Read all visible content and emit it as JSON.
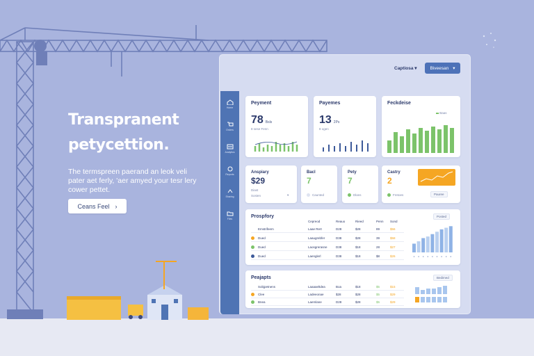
{
  "hero": {
    "title_line1": "Transpranent",
    "title_line2": "petycettion.",
    "body": "The termspreen paerand an leok veli pater aet ferly, 'aer amyed your tesr lery cower pettet.",
    "cta_label": "Ceans Feel"
  },
  "topbar": {
    "label": "Captiosa ▾",
    "button_label": "Biveesan"
  },
  "rail": [
    "Home",
    "Orders",
    "Analytics",
    "Reports",
    "Sharing",
    "Files"
  ],
  "cards": {
    "payment": {
      "title": "Peyment",
      "value": "78",
      "unit": "Bsls",
      "sub": "8 sese Fenn"
    },
    "payemes": {
      "title": "Payemes",
      "value": "13",
      "unit": "2Ps",
      "sub": "8 ogen"
    },
    "feckdeise": {
      "title": "Feckdeise",
      "sub": "Baas"
    },
    "anspiary": {
      "title": "Anspiary",
      "value": "$29",
      "sub": "Diast",
      "status": "Sosten"
    },
    "bacl": {
      "title": "Bacl",
      "value": "7",
      "status": "Caunted"
    },
    "pety": {
      "title": "Pety",
      "value": "7",
      "status": "Dlans"
    },
    "castry": {
      "title": "Castry",
      "value": "2",
      "status": "Fretoes",
      "pill": "Pauree"
    },
    "prospfory": {
      "title": "Prospfory",
      "headers": [
        "Cepreod",
        "Reauo",
        "Rieed",
        "Penn",
        "Sond"
      ],
      "rows": [
        [
          "Emstrifeem",
          "Laae Rert",
          "D28",
          "$28",
          "89",
          "$56"
        ],
        [
          "Dued",
          "Laaugrebfer",
          "D38",
          "$28",
          "39",
          "$58"
        ],
        [
          "Dued",
          "Laosgrerasne",
          "D38",
          "$18",
          "28",
          "$27"
        ],
        [
          "Dued",
          "Laenglerl",
          "D38",
          "$18",
          "$8",
          "$26"
        ]
      ],
      "pill": "Posted",
      "chart": [
        22,
        28,
        36,
        40,
        46,
        52,
        58,
        62,
        66
      ]
    },
    "projects": {
      "title": "Peajapts",
      "rows": [
        [
          "Sobjpetnens",
          "Laaaaeltdea",
          "Boa",
          "$18",
          "$5",
          "$15"
        ],
        [
          "Clee",
          "Ladeeonae",
          "$28",
          "$28",
          "$5",
          "$29"
        ],
        [
          "Bnea",
          "Laemlane",
          "D28",
          "$28",
          "$5",
          "$29"
        ]
      ],
      "pill": "Bedimed"
    }
  },
  "colors": {
    "accent": "#4f74b4",
    "green": "#7cc36a",
    "orange": "#f5a623",
    "bg": "#a9b4de"
  }
}
